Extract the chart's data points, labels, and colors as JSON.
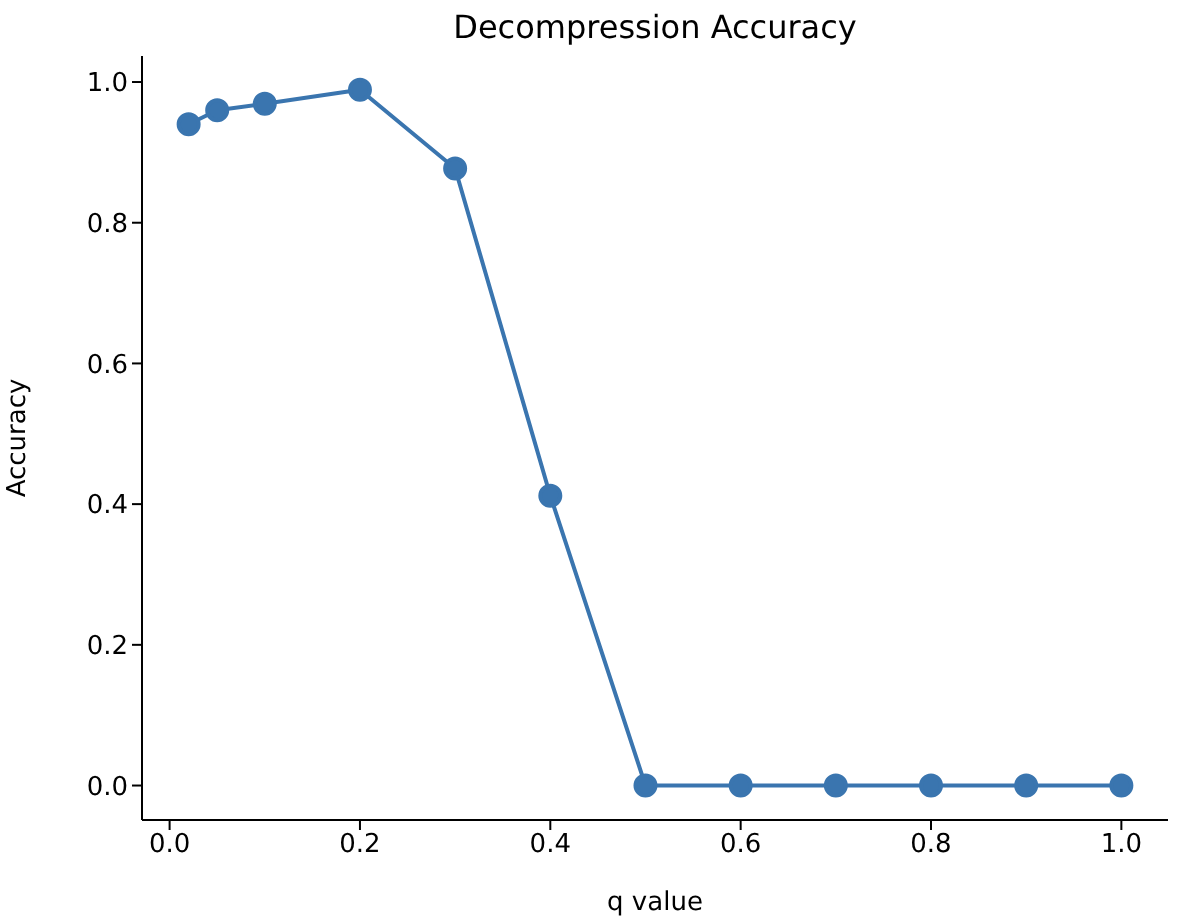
{
  "chart_data": {
    "type": "line",
    "title": "Decompression Accuracy",
    "xlabel": "q value",
    "ylabel": "Accuracy",
    "x": [
      0.02,
      0.05,
      0.1,
      0.2,
      0.3,
      0.4,
      0.5,
      0.6,
      0.7,
      0.8,
      0.9,
      1.0
    ],
    "series": [
      {
        "color": "#3a75af",
        "values": [
          0.94,
          0.96,
          0.969,
          0.989,
          0.877,
          0.412,
          0,
          0,
          0,
          0,
          0,
          0
        ]
      }
    ],
    "xlim": [
      -0.029,
      1.049
    ],
    "ylim": [
      -0.049,
      1.037
    ],
    "xticks": [
      {
        "value": 0,
        "label": "0.0"
      },
      {
        "value": 0.2,
        "label": "0.2"
      },
      {
        "value": 0.4,
        "label": "0.4"
      },
      {
        "value": 0.6,
        "label": "0.6"
      },
      {
        "value": 0.8,
        "label": "0.8"
      },
      {
        "value": 1,
        "label": "1.0"
      }
    ],
    "yticks": [
      {
        "value": 0,
        "label": "0.0"
      },
      {
        "value": 0.2,
        "label": "0.2"
      },
      {
        "value": 0.4,
        "label": "0.4"
      },
      {
        "value": 0.6,
        "label": "0.6"
      },
      {
        "value": 0.8,
        "label": "0.8"
      },
      {
        "value": 1,
        "label": "1.0"
      }
    ],
    "marker": "circle",
    "line_style": "solid",
    "grid": false,
    "legend": false
  }
}
